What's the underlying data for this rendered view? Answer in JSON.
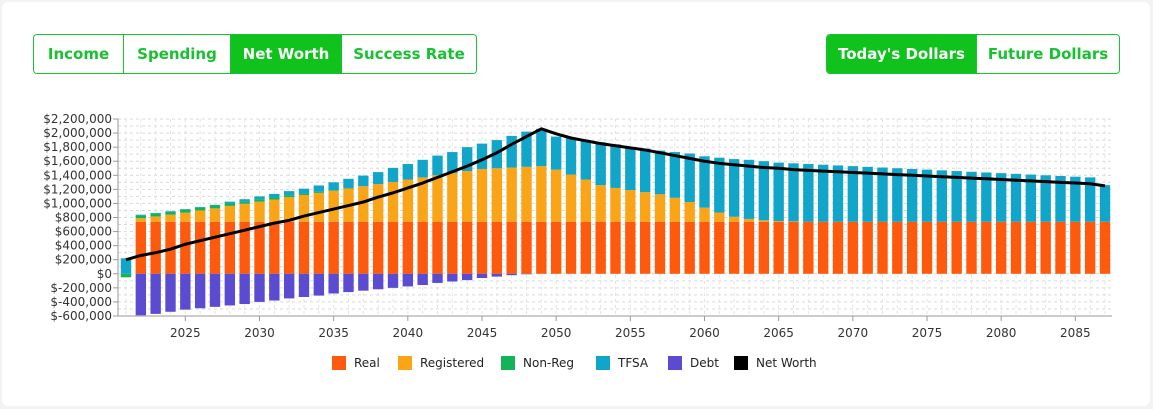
{
  "view_tabs": [
    {
      "label": "Income",
      "active": false
    },
    {
      "label": "Spending",
      "active": false
    },
    {
      "label": "Net Worth",
      "active": true
    },
    {
      "label": "Success Rate",
      "active": false
    }
  ],
  "dollar_tabs": [
    {
      "label": "Today's Dollars",
      "active": true
    },
    {
      "label": "Future Dollars",
      "active": false
    }
  ],
  "colors": {
    "accent": "#18c12f",
    "real": "#fd5a0e",
    "registered": "#f9a517",
    "non_reg": "#13b35a",
    "tfsa": "#10a5c9",
    "debt": "#5b4bd0",
    "net_worth": "#000000"
  },
  "chart_data": {
    "type": "bar",
    "stacked": true,
    "x": [
      2021,
      2022,
      2023,
      2024,
      2025,
      2026,
      2027,
      2028,
      2029,
      2030,
      2031,
      2032,
      2033,
      2034,
      2035,
      2036,
      2037,
      2038,
      2039,
      2040,
      2041,
      2042,
      2043,
      2044,
      2045,
      2046,
      2047,
      2048,
      2049,
      2050,
      2051,
      2052,
      2053,
      2054,
      2055,
      2056,
      2057,
      2058,
      2059,
      2060,
      2061,
      2062,
      2063,
      2064,
      2065,
      2066,
      2067,
      2068,
      2069,
      2070,
      2071,
      2072,
      2073,
      2074,
      2075,
      2076,
      2077,
      2078,
      2079,
      2080,
      2081,
      2082,
      2083,
      2084,
      2085,
      2086,
      2087
    ],
    "xticks": [
      "2025",
      "2030",
      "2035",
      "2040",
      "2045",
      "2050",
      "2055",
      "2060",
      "2065",
      "2070",
      "2075",
      "2080",
      "2085"
    ],
    "yticks": [
      "$2,200,000",
      "$2,000,000",
      "$1,800,000",
      "$1,600,000",
      "$1,400,000",
      "$1,200,000",
      "$1,000,000",
      "$800,000",
      "$600,000",
      "$400,000",
      "$200,000",
      "$0",
      "$-200,000",
      "$-400,000",
      "$-600,000"
    ],
    "ylim": [
      -600000,
      2200000
    ],
    "grid": true,
    "legend_position": "bottom",
    "series": [
      {
        "name": "Real",
        "key": "real",
        "values": [
          0,
          740000,
          740000,
          740000,
          740000,
          740000,
          740000,
          740000,
          740000,
          740000,
          740000,
          740000,
          740000,
          740000,
          740000,
          740000,
          740000,
          740000,
          740000,
          740000,
          740000,
          740000,
          740000,
          740000,
          740000,
          740000,
          740000,
          740000,
          740000,
          740000,
          740000,
          740000,
          740000,
          740000,
          740000,
          740000,
          740000,
          740000,
          740000,
          740000,
          740000,
          740000,
          740000,
          740000,
          740000,
          740000,
          740000,
          740000,
          740000,
          740000,
          740000,
          740000,
          740000,
          740000,
          740000,
          740000,
          740000,
          740000,
          740000,
          740000,
          740000,
          740000,
          740000,
          740000,
          740000,
          740000,
          740000
        ]
      },
      {
        "name": "Registered",
        "key": "registered",
        "values": [
          0,
          50000,
          75000,
          100000,
          130000,
          160000,
          190000,
          225000,
          255000,
          285000,
          315000,
          350000,
          380000,
          410000,
          440000,
          475000,
          505000,
          535000,
          565000,
          600000,
          630000,
          660000,
          690000,
          720000,
          750000,
          760000,
          770000,
          780000,
          790000,
          740000,
          670000,
          600000,
          520000,
          480000,
          450000,
          420000,
          390000,
          340000,
          280000,
          200000,
          130000,
          70000,
          40000,
          20000,
          10000,
          5000,
          0,
          0,
          0,
          0,
          0,
          0,
          0,
          0,
          0,
          0,
          0,
          0,
          0,
          0,
          0,
          0,
          0,
          0,
          0,
          0,
          0
        ]
      },
      {
        "name": "Non-Reg",
        "key": "non_reg",
        "values": [
          -50000,
          40000,
          40000,
          40000,
          40000,
          40000,
          40000,
          40000,
          35000,
          35000,
          30000,
          25000,
          20000,
          15000,
          10000,
          5000,
          0,
          0,
          0,
          0,
          0,
          0,
          0,
          0,
          0,
          0,
          0,
          0,
          0,
          0,
          0,
          0,
          0,
          0,
          0,
          0,
          0,
          0,
          0,
          0,
          0,
          0,
          0,
          0,
          0,
          0,
          0,
          0,
          0,
          0,
          0,
          0,
          0,
          0,
          0,
          0,
          0,
          0,
          0,
          0,
          0,
          0,
          0,
          0,
          0,
          0,
          0
        ]
      },
      {
        "name": "TFSA",
        "key": "tfsa",
        "values": [
          220000,
          10000,
          10000,
          10000,
          10000,
          10000,
          10000,
          20000,
          30000,
          40000,
          50000,
          60000,
          70000,
          90000,
          110000,
          130000,
          150000,
          170000,
          200000,
          220000,
          250000,
          280000,
          300000,
          340000,
          360000,
          400000,
          450000,
          500000,
          530000,
          470000,
          520000,
          560000,
          610000,
          620000,
          610000,
          620000,
          620000,
          650000,
          690000,
          730000,
          780000,
          820000,
          840000,
          840000,
          830000,
          825000,
          820000,
          810000,
          800000,
          790000,
          780000,
          770000,
          760000,
          750000,
          740000,
          730000,
          720000,
          710000,
          700000,
          690000,
          680000,
          670000,
          660000,
          650000,
          640000,
          630000,
          520000
        ]
      },
      {
        "name": "Debt",
        "key": "debt",
        "values": [
          0,
          -590000,
          -570000,
          -540000,
          -510000,
          -490000,
          -470000,
          -450000,
          -430000,
          -400000,
          -380000,
          -350000,
          -330000,
          -310000,
          -280000,
          -260000,
          -240000,
          -220000,
          -200000,
          -180000,
          -160000,
          -130000,
          -110000,
          -90000,
          -60000,
          -40000,
          -20000,
          -5000,
          0,
          0,
          0,
          0,
          0,
          0,
          0,
          0,
          0,
          0,
          0,
          0,
          0,
          0,
          0,
          0,
          0,
          0,
          0,
          0,
          0,
          0,
          0,
          0,
          0,
          0,
          0,
          0,
          0,
          0,
          0,
          0,
          0,
          0,
          0,
          0,
          0,
          0,
          0
        ]
      },
      {
        "name": "Net Worth",
        "key": "net_worth",
        "type": "line",
        "values": [
          200000,
          260000,
          300000,
          350000,
          420000,
          470000,
          520000,
          570000,
          620000,
          670000,
          720000,
          760000,
          820000,
          870000,
          920000,
          970000,
          1020000,
          1090000,
          1150000,
          1220000,
          1290000,
          1370000,
          1450000,
          1530000,
          1620000,
          1720000,
          1840000,
          1950000,
          2060000,
          1990000,
          1930000,
          1890000,
          1850000,
          1820000,
          1790000,
          1760000,
          1720000,
          1680000,
          1640000,
          1600000,
          1570000,
          1550000,
          1530000,
          1510000,
          1500000,
          1480000,
          1470000,
          1460000,
          1450000,
          1440000,
          1430000,
          1420000,
          1410000,
          1400000,
          1390000,
          1380000,
          1370000,
          1360000,
          1350000,
          1340000,
          1330000,
          1320000,
          1310000,
          1300000,
          1290000,
          1280000,
          1250000
        ]
      }
    ]
  }
}
